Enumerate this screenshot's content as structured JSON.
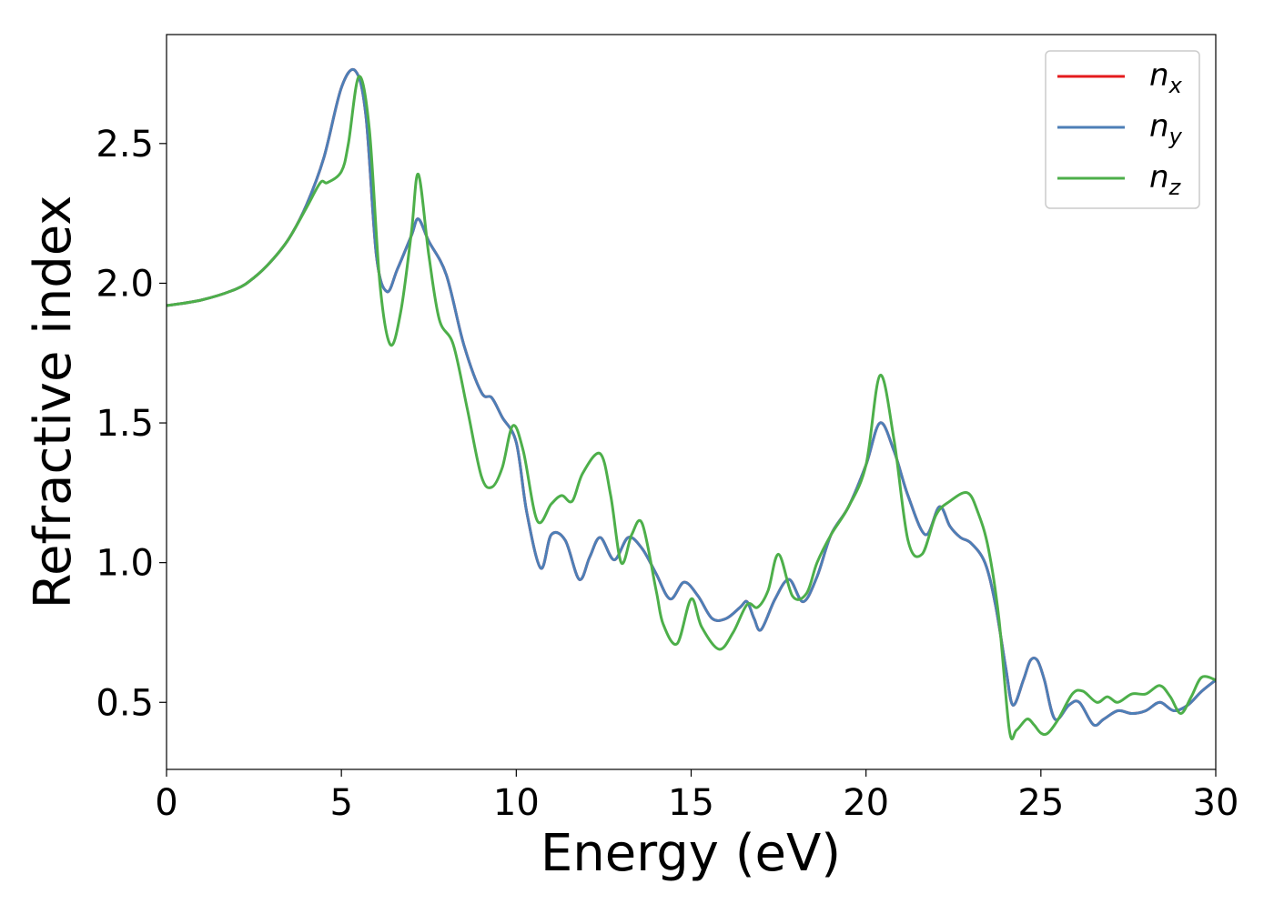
{
  "chart_data": {
    "type": "line",
    "title": "",
    "xlabel": "Energy (eV)",
    "ylabel": "Refractive index",
    "xlim": [
      0,
      30
    ],
    "ylim": [
      0.26,
      2.89
    ],
    "xticks": [
      0,
      5,
      10,
      15,
      20,
      25,
      30
    ],
    "xtick_labels": [
      "0",
      "5",
      "10",
      "15",
      "20",
      "25",
      "30"
    ],
    "yticks": [
      0.5,
      1.0,
      1.5,
      2.0,
      2.5
    ],
    "ytick_labels": [
      "0.5",
      "1.0",
      "1.5",
      "2.0",
      "2.5"
    ],
    "grid": false,
    "legend_position": "top-right",
    "series": [
      {
        "name": "n_x",
        "legend_main": "n",
        "legend_sub": "x",
        "color": "#e41a1c",
        "x": [
          0,
          1,
          2,
          2.5,
          3,
          3.5,
          4,
          4.5,
          5,
          5.4,
          5.7,
          6.0,
          6.3,
          6.6,
          7.0,
          7.2,
          7.5,
          8.0,
          8.5,
          9.0,
          9.3,
          9.6,
          10.0,
          10.3,
          10.7,
          11.0,
          11.4,
          11.8,
          12.1,
          12.4,
          12.8,
          13.2,
          13.6,
          14.0,
          14.4,
          14.8,
          15.2,
          15.6,
          16.0,
          16.4,
          16.6,
          16.8,
          17.0,
          17.4,
          17.8,
          18.2,
          18.6,
          19.0,
          19.5,
          20.0,
          20.4,
          20.8,
          21.2,
          21.7,
          22.1,
          22.4,
          22.7,
          23.0,
          23.4,
          23.7,
          24.0,
          24.2,
          24.5,
          24.7,
          24.9,
          25.1,
          25.4,
          25.8,
          26.1,
          26.5,
          26.8,
          27.2,
          27.6,
          28.0,
          28.4,
          28.8,
          29.2,
          29.6,
          30.0
        ],
        "y": [
          1.92,
          1.94,
          1.98,
          2.02,
          2.08,
          2.16,
          2.28,
          2.45,
          2.7,
          2.76,
          2.6,
          2.1,
          1.97,
          2.05,
          2.17,
          2.23,
          2.15,
          2.03,
          1.78,
          1.61,
          1.59,
          1.52,
          1.43,
          1.18,
          0.98,
          1.1,
          1.08,
          0.94,
          1.02,
          1.09,
          1.01,
          1.09,
          1.05,
          0.96,
          0.87,
          0.93,
          0.88,
          0.8,
          0.8,
          0.84,
          0.86,
          0.8,
          0.76,
          0.87,
          0.94,
          0.86,
          0.95,
          1.1,
          1.2,
          1.35,
          1.5,
          1.4,
          1.24,
          1.1,
          1.2,
          1.13,
          1.09,
          1.07,
          1.0,
          0.85,
          0.62,
          0.49,
          0.58,
          0.65,
          0.65,
          0.58,
          0.44,
          0.49,
          0.5,
          0.42,
          0.44,
          0.47,
          0.46,
          0.47,
          0.5,
          0.47,
          0.49,
          0.54,
          0.58
        ]
      },
      {
        "name": "n_y",
        "legend_main": "n",
        "legend_sub": "y",
        "color": "#4d7fb7",
        "x": [
          0,
          1,
          2,
          2.5,
          3,
          3.5,
          4,
          4.5,
          5,
          5.4,
          5.7,
          6.0,
          6.3,
          6.6,
          7.0,
          7.2,
          7.5,
          8.0,
          8.5,
          9.0,
          9.3,
          9.6,
          10.0,
          10.3,
          10.7,
          11.0,
          11.4,
          11.8,
          12.1,
          12.4,
          12.8,
          13.2,
          13.6,
          14.0,
          14.4,
          14.8,
          15.2,
          15.6,
          16.0,
          16.4,
          16.6,
          16.8,
          17.0,
          17.4,
          17.8,
          18.2,
          18.6,
          19.0,
          19.5,
          20.0,
          20.4,
          20.8,
          21.2,
          21.7,
          22.1,
          22.4,
          22.7,
          23.0,
          23.4,
          23.7,
          24.0,
          24.2,
          24.5,
          24.7,
          24.9,
          25.1,
          25.4,
          25.8,
          26.1,
          26.5,
          26.8,
          27.2,
          27.6,
          28.0,
          28.4,
          28.8,
          29.2,
          29.6,
          30.0
        ],
        "y": [
          1.92,
          1.94,
          1.98,
          2.02,
          2.08,
          2.16,
          2.28,
          2.45,
          2.7,
          2.76,
          2.6,
          2.1,
          1.97,
          2.05,
          2.17,
          2.23,
          2.15,
          2.03,
          1.78,
          1.61,
          1.59,
          1.52,
          1.43,
          1.18,
          0.98,
          1.1,
          1.08,
          0.94,
          1.02,
          1.09,
          1.01,
          1.09,
          1.05,
          0.96,
          0.87,
          0.93,
          0.88,
          0.8,
          0.8,
          0.84,
          0.86,
          0.8,
          0.76,
          0.87,
          0.94,
          0.86,
          0.95,
          1.1,
          1.2,
          1.35,
          1.5,
          1.4,
          1.24,
          1.1,
          1.2,
          1.13,
          1.09,
          1.07,
          1.0,
          0.85,
          0.62,
          0.49,
          0.58,
          0.65,
          0.65,
          0.58,
          0.44,
          0.49,
          0.5,
          0.42,
          0.44,
          0.47,
          0.46,
          0.47,
          0.5,
          0.47,
          0.49,
          0.54,
          0.58
        ]
      },
      {
        "name": "n_z",
        "legend_main": "n",
        "legend_sub": "z",
        "color": "#4daf4a",
        "x": [
          0,
          1,
          2,
          2.5,
          3,
          3.5,
          4,
          4.4,
          4.6,
          5.0,
          5.2,
          5.5,
          5.8,
          6.1,
          6.4,
          6.7,
          7.0,
          7.2,
          7.5,
          7.8,
          8.2,
          8.6,
          9.0,
          9.3,
          9.6,
          9.9,
          10.2,
          10.6,
          11.0,
          11.3,
          11.6,
          11.9,
          12.4,
          12.7,
          13.0,
          13.3,
          13.6,
          14.0,
          14.2,
          14.6,
          15.0,
          15.3,
          15.8,
          16.2,
          16.6,
          16.9,
          17.2,
          17.5,
          17.9,
          18.3,
          18.6,
          19.0,
          19.5,
          20.0,
          20.4,
          20.8,
          21.2,
          21.6,
          22.0,
          22.4,
          22.9,
          23.2,
          23.5,
          23.8,
          24.1,
          24.3,
          24.6,
          24.8,
          25.0,
          25.2,
          25.5,
          25.9,
          26.2,
          26.6,
          26.9,
          27.2,
          27.6,
          28.0,
          28.4,
          28.7,
          29.0,
          29.3,
          29.6,
          30.0
        ],
        "y": [
          1.92,
          1.94,
          1.98,
          2.02,
          2.08,
          2.16,
          2.27,
          2.36,
          2.36,
          2.4,
          2.5,
          2.74,
          2.55,
          2.0,
          1.78,
          1.9,
          2.18,
          2.39,
          2.1,
          1.87,
          1.78,
          1.55,
          1.31,
          1.27,
          1.34,
          1.49,
          1.4,
          1.15,
          1.21,
          1.24,
          1.22,
          1.32,
          1.39,
          1.24,
          1.0,
          1.1,
          1.14,
          0.9,
          0.78,
          0.71,
          0.87,
          0.77,
          0.69,
          0.75,
          0.85,
          0.84,
          0.9,
          1.03,
          0.88,
          0.89,
          1.0,
          1.1,
          1.2,
          1.35,
          1.67,
          1.44,
          1.08,
          1.03,
          1.17,
          1.22,
          1.25,
          1.18,
          1.05,
          0.8,
          0.4,
          0.4,
          0.44,
          0.42,
          0.39,
          0.39,
          0.44,
          0.53,
          0.54,
          0.5,
          0.52,
          0.5,
          0.53,
          0.53,
          0.56,
          0.52,
          0.46,
          0.52,
          0.59,
          0.58
        ]
      }
    ]
  }
}
